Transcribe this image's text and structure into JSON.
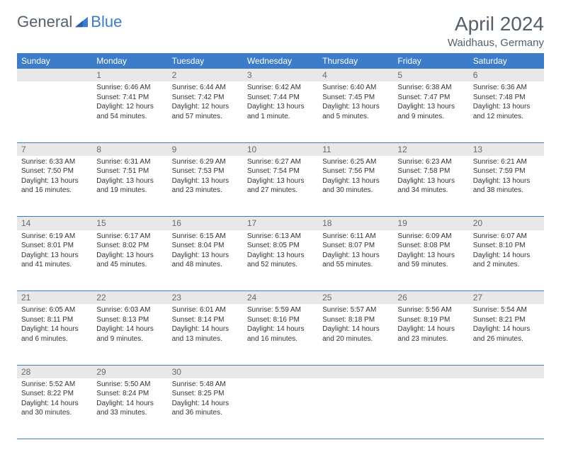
{
  "brand": {
    "part1": "General",
    "part2": "Blue"
  },
  "title": "April 2024",
  "location": "Waidhaus, Germany",
  "columns": [
    "Sunday",
    "Monday",
    "Tuesday",
    "Wednesday",
    "Thursday",
    "Friday",
    "Saturday"
  ],
  "colors": {
    "header_bg": "#3d7cc9",
    "header_fg": "#ffffff",
    "daynum_bg": "#e8e8e8",
    "text": "#333333",
    "muted": "#55606a",
    "row_divider": "#3d7cc9"
  },
  "weeks": [
    {
      "nums": [
        "",
        "1",
        "2",
        "3",
        "4",
        "5",
        "6"
      ],
      "details": [
        [],
        [
          "Sunrise: 6:46 AM",
          "Sunset: 7:41 PM",
          "Daylight: 12 hours",
          "and 54 minutes."
        ],
        [
          "Sunrise: 6:44 AM",
          "Sunset: 7:42 PM",
          "Daylight: 12 hours",
          "and 57 minutes."
        ],
        [
          "Sunrise: 6:42 AM",
          "Sunset: 7:44 PM",
          "Daylight: 13 hours",
          "and 1 minute."
        ],
        [
          "Sunrise: 6:40 AM",
          "Sunset: 7:45 PM",
          "Daylight: 13 hours",
          "and 5 minutes."
        ],
        [
          "Sunrise: 6:38 AM",
          "Sunset: 7:47 PM",
          "Daylight: 13 hours",
          "and 9 minutes."
        ],
        [
          "Sunrise: 6:36 AM",
          "Sunset: 7:48 PM",
          "Daylight: 13 hours",
          "and 12 minutes."
        ]
      ]
    },
    {
      "nums": [
        "7",
        "8",
        "9",
        "10",
        "11",
        "12",
        "13"
      ],
      "details": [
        [
          "Sunrise: 6:33 AM",
          "Sunset: 7:50 PM",
          "Daylight: 13 hours",
          "and 16 minutes."
        ],
        [
          "Sunrise: 6:31 AM",
          "Sunset: 7:51 PM",
          "Daylight: 13 hours",
          "and 19 minutes."
        ],
        [
          "Sunrise: 6:29 AM",
          "Sunset: 7:53 PM",
          "Daylight: 13 hours",
          "and 23 minutes."
        ],
        [
          "Sunrise: 6:27 AM",
          "Sunset: 7:54 PM",
          "Daylight: 13 hours",
          "and 27 minutes."
        ],
        [
          "Sunrise: 6:25 AM",
          "Sunset: 7:56 PM",
          "Daylight: 13 hours",
          "and 30 minutes."
        ],
        [
          "Sunrise: 6:23 AM",
          "Sunset: 7:58 PM",
          "Daylight: 13 hours",
          "and 34 minutes."
        ],
        [
          "Sunrise: 6:21 AM",
          "Sunset: 7:59 PM",
          "Daylight: 13 hours",
          "and 38 minutes."
        ]
      ]
    },
    {
      "nums": [
        "14",
        "15",
        "16",
        "17",
        "18",
        "19",
        "20"
      ],
      "details": [
        [
          "Sunrise: 6:19 AM",
          "Sunset: 8:01 PM",
          "Daylight: 13 hours",
          "and 41 minutes."
        ],
        [
          "Sunrise: 6:17 AM",
          "Sunset: 8:02 PM",
          "Daylight: 13 hours",
          "and 45 minutes."
        ],
        [
          "Sunrise: 6:15 AM",
          "Sunset: 8:04 PM",
          "Daylight: 13 hours",
          "and 48 minutes."
        ],
        [
          "Sunrise: 6:13 AM",
          "Sunset: 8:05 PM",
          "Daylight: 13 hours",
          "and 52 minutes."
        ],
        [
          "Sunrise: 6:11 AM",
          "Sunset: 8:07 PM",
          "Daylight: 13 hours",
          "and 55 minutes."
        ],
        [
          "Sunrise: 6:09 AM",
          "Sunset: 8:08 PM",
          "Daylight: 13 hours",
          "and 59 minutes."
        ],
        [
          "Sunrise: 6:07 AM",
          "Sunset: 8:10 PM",
          "Daylight: 14 hours",
          "and 2 minutes."
        ]
      ]
    },
    {
      "nums": [
        "21",
        "22",
        "23",
        "24",
        "25",
        "26",
        "27"
      ],
      "details": [
        [
          "Sunrise: 6:05 AM",
          "Sunset: 8:11 PM",
          "Daylight: 14 hours",
          "and 6 minutes."
        ],
        [
          "Sunrise: 6:03 AM",
          "Sunset: 8:13 PM",
          "Daylight: 14 hours",
          "and 9 minutes."
        ],
        [
          "Sunrise: 6:01 AM",
          "Sunset: 8:14 PM",
          "Daylight: 14 hours",
          "and 13 minutes."
        ],
        [
          "Sunrise: 5:59 AM",
          "Sunset: 8:16 PM",
          "Daylight: 14 hours",
          "and 16 minutes."
        ],
        [
          "Sunrise: 5:57 AM",
          "Sunset: 8:18 PM",
          "Daylight: 14 hours",
          "and 20 minutes."
        ],
        [
          "Sunrise: 5:56 AM",
          "Sunset: 8:19 PM",
          "Daylight: 14 hours",
          "and 23 minutes."
        ],
        [
          "Sunrise: 5:54 AM",
          "Sunset: 8:21 PM",
          "Daylight: 14 hours",
          "and 26 minutes."
        ]
      ]
    },
    {
      "nums": [
        "28",
        "29",
        "30",
        "",
        "",
        "",
        ""
      ],
      "details": [
        [
          "Sunrise: 5:52 AM",
          "Sunset: 8:22 PM",
          "Daylight: 14 hours",
          "and 30 minutes."
        ],
        [
          "Sunrise: 5:50 AM",
          "Sunset: 8:24 PM",
          "Daylight: 14 hours",
          "and 33 minutes."
        ],
        [
          "Sunrise: 5:48 AM",
          "Sunset: 8:25 PM",
          "Daylight: 14 hours",
          "and 36 minutes."
        ],
        [],
        [],
        [],
        []
      ]
    }
  ]
}
